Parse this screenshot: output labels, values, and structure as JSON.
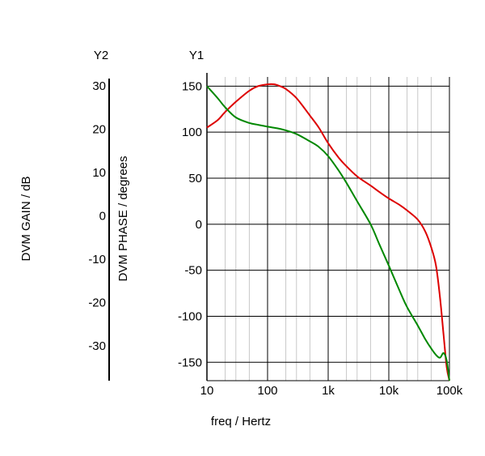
{
  "chart_data": {
    "type": "line",
    "title": "",
    "xlabel": "freq / Hertz",
    "xscale": "log",
    "xlim": [
      10,
      100000
    ],
    "xticks": [
      "10",
      "100",
      "1k",
      "10k",
      "100k"
    ],
    "y1": {
      "header": "Y1",
      "label": "",
      "lim": [
        -170,
        160
      ],
      "ticks": [
        "150",
        "100",
        "50",
        "0",
        "-50",
        "-100",
        "-150"
      ]
    },
    "y2_gain": {
      "header": "Y2",
      "label": "DVM GAIN / dB",
      "ticks": [
        "30",
        "20",
        "10",
        "0",
        "-10",
        "-20",
        "-30"
      ]
    },
    "y2_phase": {
      "label": "DVM PHASE / degrees"
    },
    "grid": true,
    "series": [
      {
        "color": "#dd0000",
        "x": [
          10,
          15,
          20,
          30,
          50,
          70,
          100,
          130,
          160,
          200,
          300,
          500,
          700,
          1000,
          1500,
          2000,
          3000,
          5000,
          7000,
          10000,
          15000,
          20000,
          30000,
          40000,
          50000,
          60000,
          70000,
          80000,
          90000,
          100000
        ],
        "y": [
          105,
          113,
          122,
          133,
          145,
          150,
          152,
          152,
          150,
          147,
          137,
          118,
          105,
          88,
          72,
          63,
          52,
          42,
          35,
          28,
          21,
          15,
          5,
          -8,
          -25,
          -45,
          -80,
          -120,
          -155,
          -170
        ]
      },
      {
        "color": "#008800",
        "x": [
          10,
          15,
          20,
          30,
          50,
          70,
          100,
          150,
          200,
          300,
          500,
          700,
          1000,
          1500,
          2000,
          3000,
          5000,
          7000,
          10000,
          15000,
          20000,
          30000,
          40000,
          50000,
          60000,
          70000,
          80000,
          90000,
          100000
        ],
        "y": [
          150,
          137,
          127,
          116,
          110,
          108,
          106,
          104,
          102,
          98,
          90,
          84,
          74,
          58,
          45,
          25,
          0,
          -22,
          -45,
          -72,
          -90,
          -110,
          -125,
          -135,
          -142,
          -145,
          -140,
          -148,
          -170
        ]
      }
    ]
  }
}
